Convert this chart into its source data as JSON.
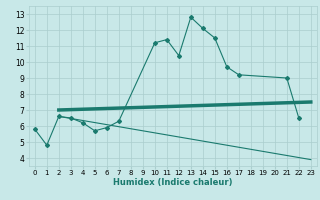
{
  "line1_x": [
    0,
    1,
    2,
    3,
    4,
    5,
    6,
    7,
    10,
    11,
    12,
    13,
    14,
    15,
    16,
    17,
    21,
    22
  ],
  "line1_y": [
    5.8,
    4.8,
    6.6,
    6.5,
    6.2,
    5.7,
    5.9,
    6.3,
    11.2,
    11.4,
    10.4,
    12.8,
    12.1,
    11.5,
    9.7,
    9.2,
    9.0,
    6.5
  ],
  "flat_line_x": [
    2,
    23
  ],
  "flat_line_y": [
    7.0,
    7.5
  ],
  "decline_x": [
    2,
    23
  ],
  "decline_y": [
    6.6,
    3.9
  ],
  "color": "#1a7a6e",
  "bg_color": "#c8e8e8",
  "grid_color": "#aacece",
  "ylim": [
    3.5,
    13.5
  ],
  "xlim": [
    -0.5,
    23.5
  ],
  "yticks": [
    4,
    5,
    6,
    7,
    8,
    9,
    10,
    11,
    12,
    13
  ],
  "xticks": [
    0,
    1,
    2,
    3,
    4,
    5,
    6,
    7,
    8,
    9,
    10,
    11,
    12,
    13,
    14,
    15,
    16,
    17,
    18,
    19,
    20,
    21,
    22,
    23
  ],
  "xlabel": "Humidex (Indice chaleur)"
}
